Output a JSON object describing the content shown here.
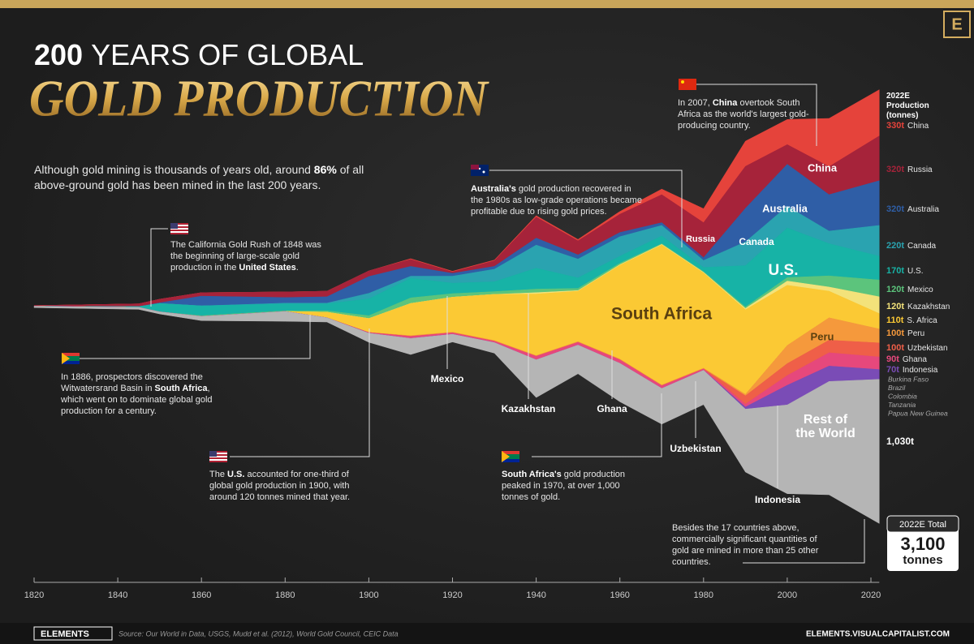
{
  "chart_data": {
    "type": "streamgraph",
    "title_number": "200",
    "title_rest": "YEARS OF GLOBAL",
    "title_main": "GOLD PRODUCTION",
    "subtitle": [
      {
        "text": "Although gold mining is thousands of years old, around "
      },
      {
        "text": "86%",
        "bold": true
      },
      {
        "text": " of all above-ground gold has been mined in the last 200 years."
      }
    ],
    "legend_title": "2022E Production (tonnes)",
    "x": [
      1820,
      1845,
      1850,
      1860,
      1880,
      1890,
      1900,
      1910,
      1920,
      1930,
      1940,
      1950,
      1960,
      1970,
      1980,
      1990,
      2000,
      2010,
      2022
    ],
    "xlim": [
      1820,
      2022
    ],
    "xticks": [
      1820,
      1840,
      1860,
      1880,
      1900,
      1920,
      1940,
      1960,
      1980,
      2000,
      2020
    ],
    "series": [
      {
        "name": "China",
        "label": "China",
        "end_label": "330t",
        "color": "#e5433b",
        "values": [
          0,
          0,
          0,
          0,
          0,
          0,
          0,
          5,
          5,
          5,
          10,
          10,
          20,
          40,
          100,
          180,
          180,
          345,
          330
        ]
      },
      {
        "name": "Russia",
        "label": "Russia",
        "end_label": "320t",
        "color": "#a6233a",
        "values": [
          5,
          20,
          25,
          25,
          40,
          40,
          40,
          50,
          10,
          40,
          150,
          100,
          130,
          200,
          250,
          300,
          140,
          200,
          320
        ]
      },
      {
        "name": "Australia",
        "label": "Australia",
        "end_label": "320t",
        "color": "#2f5ea6",
        "values": [
          0,
          0,
          5,
          70,
          40,
          45,
          120,
          70,
          20,
          20,
          50,
          30,
          30,
          20,
          20,
          240,
          300,
          260,
          320
        ]
      },
      {
        "name": "Canada",
        "label": "Canada",
        "end_label": "220t",
        "color": "#2aa3b0",
        "values": [
          0,
          0,
          0,
          0,
          5,
          5,
          40,
          15,
          50,
          90,
          165,
          135,
          140,
          75,
          50,
          170,
          155,
          90,
          220
        ]
      },
      {
        "name": "U.S.",
        "label": "U.S.",
        "end_label": "170t",
        "color": "#17b3a6",
        "values": [
          0,
          5,
          60,
          70,
          50,
          50,
          120,
          140,
          75,
          70,
          150,
          75,
          50,
          55,
          30,
          295,
          355,
          230,
          170
        ]
      },
      {
        "name": "Mexico",
        "label": "Mexico",
        "end_label": "120t",
        "color": "#5cc47c",
        "values": [
          0,
          0,
          0,
          5,
          5,
          10,
          20,
          40,
          25,
          20,
          25,
          15,
          10,
          5,
          5,
          10,
          25,
          80,
          120
        ]
      },
      {
        "name": "Kazakhstan",
        "label": "Kazakhstan",
        "end_label": "120t",
        "color": "#f3e27a",
        "values": [
          0,
          0,
          0,
          0,
          0,
          0,
          0,
          0,
          0,
          0,
          10,
          5,
          5,
          5,
          5,
          10,
          30,
          30,
          120
        ]
      },
      {
        "name": "S. Africa",
        "label": "South Africa",
        "end_label": "110t",
        "color": "#fbc934",
        "values": [
          0,
          0,
          0,
          0,
          0,
          40,
          100,
          230,
          250,
          330,
          440,
          360,
          670,
          1000,
          680,
          605,
          430,
          190,
          110
        ]
      },
      {
        "name": "Peru",
        "label": "Peru",
        "end_label": "100t",
        "color": "#f5993c",
        "values": [
          0,
          0,
          0,
          0,
          0,
          0,
          0,
          5,
          5,
          5,
          5,
          5,
          5,
          5,
          5,
          10,
          130,
          160,
          100
        ]
      },
      {
        "name": "Uzbekistan",
        "label": "Uzbekistan",
        "end_label": "100t",
        "color": "#ef5f48",
        "values": [
          0,
          0,
          0,
          0,
          0,
          0,
          0,
          0,
          0,
          0,
          0,
          0,
          0,
          0,
          0,
          60,
          85,
          90,
          100
        ]
      },
      {
        "name": "Ghana",
        "label": "Ghana",
        "end_label": "90t",
        "color": "#e6487c",
        "values": [
          0,
          0,
          0,
          0,
          0,
          0,
          5,
          15,
          10,
          10,
          25,
          20,
          25,
          20,
          10,
          20,
          70,
          95,
          90
        ]
      },
      {
        "name": "Indonesia",
        "label": "Indonesia",
        "end_label": "70t",
        "color": "#7a4cb6",
        "values": [
          0,
          0,
          0,
          0,
          0,
          0,
          0,
          0,
          0,
          0,
          0,
          0,
          0,
          0,
          0,
          15,
          140,
          110,
          70
        ]
      },
      {
        "label": "Rest of the World",
        "end_label": "1,030t",
        "color": "#b5b5b5",
        "values": [
          10,
          15,
          15,
          30,
          70,
          30,
          65,
          115,
          55,
          75,
          270,
          205,
          275,
          255,
          245,
          450,
          635,
          810,
          1030
        ]
      }
    ],
    "minor_labels": [
      "Burkina Faso",
      "Brazil",
      "Colombia",
      "Tanzania",
      "Papua New Guinea"
    ],
    "annotations": [
      [
        {
          "text": "The California Gold Rush of 1848 was the beginning of large-scale gold production in the "
        },
        {
          "text": "United States",
          "bold": true
        },
        {
          "text": "."
        }
      ],
      [
        {
          "text": "In 1886, prospectors discovered the Witwatersrand Basin in "
        },
        {
          "text": "South Africa",
          "bold": true
        },
        {
          "text": ", which went on to dominate global gold production for a century."
        }
      ],
      [
        {
          "text": "The "
        },
        {
          "text": "U.S.",
          "bold": true
        },
        {
          "text": " accounted for one-third of global gold production in 1900, with around 120 tonnes mined that year."
        }
      ],
      [
        {
          "text": "Australia's",
          "bold": true
        },
        {
          "text": " gold production recovered in the 1980s as low-grade operations became profitable due to rising gold prices."
        }
      ],
      [
        {
          "text": "South Africa's",
          "bold": true
        },
        {
          "text": " gold production peaked in 1970, at over 1,000 tonnes of gold."
        }
      ],
      [
        {
          "text": "In 2007, "
        },
        {
          "text": "China",
          "bold": true
        },
        {
          "text": " overtook South Africa as the world's largest gold-producing country."
        }
      ],
      [
        {
          "text": "Besides the 17 countries above, commercially significant quantities of gold are mined in more than 25 other countries."
        }
      ]
    ],
    "total": {
      "title": "2022E Total",
      "amount": "3,100",
      "unit": "tonnes"
    },
    "logo": "E",
    "footer_brand": "ELEMENTS",
    "source": "Source: Our World in Data, USGS, Mudd et al. (2012), World Gold Council, CEIC Data",
    "site": "ELEMENTS.VISUALCAPITALIST.COM"
  }
}
